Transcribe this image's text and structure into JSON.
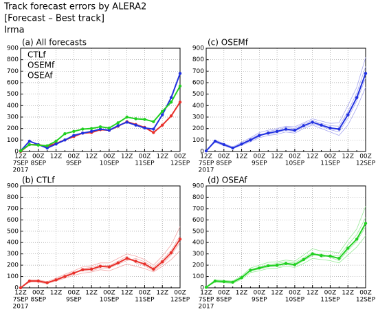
{
  "title": "Track forecast errors by ALERA2",
  "subtitle": "[Forecast – Best track]",
  "storm": "Irma",
  "chart_data": [
    {
      "type": "line",
      "title": "(a) All forecasts",
      "categories": [
        "12Z",
        null,
        "00Z",
        null,
        "12Z",
        null,
        "00Z",
        null,
        "12Z",
        null,
        "00Z",
        null,
        "12Z",
        null,
        "00Z",
        null,
        "12Z",
        null,
        "00Z"
      ],
      "dates": [
        "7SEP",
        null,
        "8SEP",
        null,
        null,
        null,
        "9SEP",
        null,
        null,
        null,
        "10SEP",
        null,
        null,
        null,
        "11SEP",
        null,
        null,
        null,
        "12SEP"
      ],
      "year": "2017",
      "ylim": [
        0,
        900
      ],
      "yticks": [
        0,
        100,
        200,
        300,
        400,
        500,
        600,
        700,
        800,
        900
      ],
      "grid": true,
      "legend": "upper left",
      "series": [
        {
          "name": "CTLf",
          "color": "#e8302a",
          "values": [
            0,
            60,
            60,
            45,
            70,
            100,
            130,
            160,
            165,
            190,
            185,
            220,
            260,
            235,
            210,
            165,
            230,
            310,
            430
          ]
        },
        {
          "name": "OSEMf",
          "color": "#2030e0",
          "values": [
            5,
            90,
            60,
            30,
            65,
            100,
            140,
            160,
            175,
            195,
            185,
            225,
            255,
            230,
            205,
            195,
            320,
            470,
            680
          ]
        },
        {
          "name": "OSEAf",
          "color": "#20d020",
          "values": [
            5,
            60,
            55,
            50,
            90,
            155,
            175,
            195,
            200,
            215,
            205,
            250,
            300,
            285,
            280,
            260,
            350,
            430,
            570
          ]
        }
      ]
    },
    {
      "type": "line",
      "title": "(c) OSEMf",
      "categories": [
        "12Z",
        null,
        "00Z",
        null,
        "12Z",
        null,
        "00Z",
        null,
        "12Z",
        null,
        "00Z",
        null,
        "12Z",
        null,
        "00Z",
        null,
        "12Z",
        null,
        "00Z"
      ],
      "dates": [
        "7SEP",
        null,
        "8SEP",
        null,
        null,
        null,
        "9SEP",
        null,
        null,
        null,
        "10SEP",
        null,
        null,
        null,
        "11SEP",
        null,
        null,
        null,
        "12SEP"
      ],
      "year": "2017",
      "ylim": [
        0,
        900
      ],
      "yticks": [
        0,
        100,
        200,
        300,
        400,
        500,
        600,
        700,
        800,
        900
      ],
      "grid": true,
      "member_color": "#a8a8f0",
      "members": [
        {
          "values": [
            5,
            80,
            50,
            25,
            55,
            85,
            120,
            140,
            150,
            170,
            160,
            200,
            230,
            200,
            170,
            140,
            230,
            380,
            560
          ]
        },
        {
          "values": [
            5,
            100,
            70,
            40,
            80,
            120,
            165,
            185,
            200,
            220,
            215,
            250,
            285,
            265,
            245,
            250,
            400,
            560,
            820
          ]
        },
        {
          "values": [
            5,
            85,
            55,
            30,
            70,
            110,
            150,
            150,
            165,
            185,
            175,
            215,
            240,
            220,
            190,
            170,
            290,
            440,
            640
          ]
        },
        {
          "values": [
            5,
            95,
            65,
            35,
            60,
            95,
            130,
            175,
            190,
            210,
            200,
            240,
            270,
            245,
            225,
            220,
            350,
            510,
            740
          ]
        }
      ],
      "series": [
        {
          "color": "#2030e0",
          "values": [
            5,
            90,
            60,
            30,
            65,
            100,
            140,
            160,
            175,
            195,
            185,
            225,
            255,
            230,
            205,
            195,
            320,
            470,
            680
          ]
        }
      ]
    },
    {
      "type": "line",
      "title": "(b) CTLf",
      "categories": [
        "12Z",
        null,
        "00Z",
        null,
        "12Z",
        null,
        "00Z",
        null,
        "12Z",
        null,
        "00Z",
        null,
        "12Z",
        null,
        "00Z",
        null,
        "12Z",
        null,
        "00Z"
      ],
      "dates": [
        "7SEP",
        null,
        "8SEP",
        null,
        null,
        null,
        "9SEP",
        null,
        null,
        null,
        "10SEP",
        null,
        null,
        null,
        "11SEP",
        null,
        null,
        null,
        "12SEP"
      ],
      "year": "2017",
      "ylim": [
        0,
        900
      ],
      "yticks": [
        0,
        100,
        200,
        300,
        400,
        500,
        600,
        700,
        800,
        900
      ],
      "grid": true,
      "member_color": "#f2a8a8",
      "members": [
        {
          "values": [
            0,
            50,
            55,
            40,
            60,
            85,
            110,
            130,
            140,
            160,
            150,
            180,
            210,
            190,
            170,
            140,
            190,
            250,
            330
          ]
        },
        {
          "values": [
            0,
            70,
            70,
            55,
            85,
            120,
            150,
            185,
            195,
            220,
            220,
            260,
            300,
            280,
            250,
            200,
            280,
            380,
            540
          ]
        },
        {
          "values": [
            0,
            55,
            50,
            35,
            75,
            110,
            140,
            150,
            150,
            175,
            175,
            210,
            240,
            260,
            230,
            180,
            250,
            330,
            460
          ]
        },
        {
          "values": [
            0,
            65,
            65,
            50,
            65,
            95,
            125,
            170,
            180,
            200,
            195,
            235,
            280,
            220,
            195,
            150,
            210,
            290,
            400
          ]
        }
      ],
      "series": [
        {
          "color": "#e8302a",
          "values": [
            0,
            60,
            60,
            45,
            70,
            100,
            130,
            160,
            165,
            190,
            185,
            220,
            260,
            235,
            210,
            165,
            230,
            310,
            430
          ]
        }
      ]
    },
    {
      "type": "line",
      "title": "(d) OSEAf",
      "categories": [
        "12Z",
        null,
        "00Z",
        null,
        "12Z",
        null,
        "00Z",
        null,
        "12Z",
        null,
        "00Z",
        null,
        "12Z",
        null,
        "00Z",
        null,
        "12Z",
        null,
        "00Z"
      ],
      "dates": [
        "7SEP",
        null,
        "8SEP",
        null,
        null,
        null,
        "9SEP",
        null,
        null,
        null,
        "10SEP",
        null,
        null,
        null,
        "11SEP",
        null,
        null,
        null,
        "12SEP"
      ],
      "year": "2017",
      "ylim": [
        0,
        900
      ],
      "yticks": [
        0,
        100,
        200,
        300,
        400,
        500,
        600,
        700,
        800,
        900
      ],
      "grid": true,
      "member_color": "#98ea98",
      "members": [
        {
          "values": [
            5,
            50,
            45,
            40,
            75,
            135,
            150,
            170,
            175,
            190,
            180,
            215,
            260,
            250,
            240,
            220,
            290,
            360,
            460
          ]
        },
        {
          "values": [
            5,
            70,
            65,
            60,
            105,
            175,
            200,
            225,
            230,
            245,
            235,
            290,
            345,
            325,
            320,
            310,
            420,
            520,
            720
          ]
        },
        {
          "values": [
            5,
            55,
            50,
            45,
            85,
            150,
            165,
            185,
            185,
            205,
            195,
            240,
            285,
            300,
            270,
            240,
            330,
            410,
            540
          ]
        },
        {
          "values": [
            5,
            65,
            60,
            55,
            95,
            160,
            185,
            205,
            215,
            230,
            220,
            265,
            315,
            270,
            290,
            280,
            380,
            470,
            620
          ]
        }
      ],
      "series": [
        {
          "color": "#20d020",
          "values": [
            5,
            60,
            55,
            50,
            90,
            155,
            175,
            195,
            200,
            215,
            205,
            250,
            300,
            285,
            280,
            260,
            350,
            430,
            570
          ]
        }
      ]
    }
  ]
}
